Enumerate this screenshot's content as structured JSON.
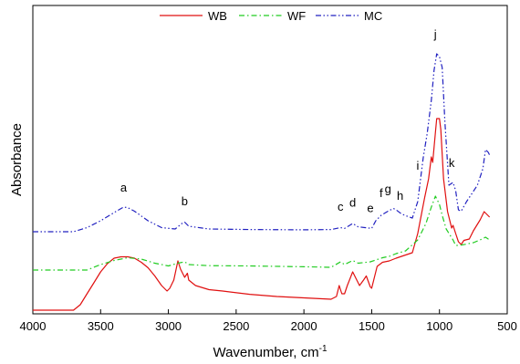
{
  "chart_data": {
    "type": "line",
    "title": "",
    "xlabel": "Wavenumber, cm",
    "xlabel_superscript": "-1",
    "ylabel": "Absorbance",
    "xlim": [
      4000,
      500
    ],
    "x_reversed": true,
    "x_ticks": [
      4000,
      3500,
      3000,
      2500,
      2000,
      1500,
      1000,
      500
    ],
    "y_ticks_shown": false,
    "legend_position": "top",
    "series": [
      {
        "name": "WB",
        "color": "#e01010",
        "dash": "solid",
        "points": [
          [
            4000,
            0.0
          ],
          [
            3800,
            0.0
          ],
          [
            3700,
            0.0
          ],
          [
            3650,
            0.02
          ],
          [
            3600,
            0.06
          ],
          [
            3550,
            0.1
          ],
          [
            3500,
            0.14
          ],
          [
            3450,
            0.17
          ],
          [
            3400,
            0.19
          ],
          [
            3350,
            0.195
          ],
          [
            3300,
            0.195
          ],
          [
            3250,
            0.19
          ],
          [
            3200,
            0.175
          ],
          [
            3150,
            0.155
          ],
          [
            3100,
            0.125
          ],
          [
            3050,
            0.09
          ],
          [
            3010,
            0.07
          ],
          [
            2990,
            0.08
          ],
          [
            2960,
            0.11
          ],
          [
            2930,
            0.18
          ],
          [
            2910,
            0.15
          ],
          [
            2880,
            0.12
          ],
          [
            2860,
            0.135
          ],
          [
            2850,
            0.11
          ],
          [
            2800,
            0.09
          ],
          [
            2700,
            0.075
          ],
          [
            2600,
            0.07
          ],
          [
            2400,
            0.058
          ],
          [
            2200,
            0.05
          ],
          [
            2000,
            0.045
          ],
          [
            1800,
            0.04
          ],
          [
            1760,
            0.05
          ],
          [
            1740,
            0.09
          ],
          [
            1720,
            0.06
          ],
          [
            1700,
            0.06
          ],
          [
            1680,
            0.09
          ],
          [
            1640,
            0.14
          ],
          [
            1620,
            0.12
          ],
          [
            1590,
            0.09
          ],
          [
            1560,
            0.11
          ],
          [
            1540,
            0.125
          ],
          [
            1510,
            0.085
          ],
          [
            1500,
            0.08
          ],
          [
            1460,
            0.16
          ],
          [
            1420,
            0.175
          ],
          [
            1370,
            0.18
          ],
          [
            1320,
            0.19
          ],
          [
            1260,
            0.2
          ],
          [
            1200,
            0.21
          ],
          [
            1160,
            0.28
          ],
          [
            1110,
            0.41
          ],
          [
            1080,
            0.48
          ],
          [
            1060,
            0.56
          ],
          [
            1050,
            0.54
          ],
          [
            1030,
            0.65
          ],
          [
            1020,
            0.7
          ],
          [
            1000,
            0.7
          ],
          [
            990,
            0.66
          ],
          [
            970,
            0.48
          ],
          [
            940,
            0.36
          ],
          [
            910,
            0.3
          ],
          [
            900,
            0.31
          ],
          [
            880,
            0.28
          ],
          [
            860,
            0.25
          ],
          [
            840,
            0.24
          ],
          [
            820,
            0.255
          ],
          [
            780,
            0.26
          ],
          [
            750,
            0.29
          ],
          [
            700,
            0.33
          ],
          [
            670,
            0.36
          ],
          [
            650,
            0.35
          ],
          [
            630,
            0.34
          ]
        ]
      },
      {
        "name": "WF",
        "color": "#22cc22",
        "dash": "dash-dot",
        "points": [
          [
            4000,
            0.0
          ],
          [
            3600,
            0.0
          ],
          [
            3500,
            0.02
          ],
          [
            3400,
            0.035
          ],
          [
            3300,
            0.045
          ],
          [
            3200,
            0.04
          ],
          [
            3100,
            0.025
          ],
          [
            3000,
            0.015
          ],
          [
            2930,
            0.025
          ],
          [
            2880,
            0.03
          ],
          [
            2850,
            0.02
          ],
          [
            2700,
            0.016
          ],
          [
            2400,
            0.015
          ],
          [
            2000,
            0.012
          ],
          [
            1800,
            0.01
          ],
          [
            1730,
            0.03
          ],
          [
            1700,
            0.02
          ],
          [
            1640,
            0.035
          ],
          [
            1600,
            0.025
          ],
          [
            1510,
            0.03
          ],
          [
            1450,
            0.04
          ],
          [
            1420,
            0.045
          ],
          [
            1370,
            0.05
          ],
          [
            1320,
            0.06
          ],
          [
            1250,
            0.07
          ],
          [
            1160,
            0.11
          ],
          [
            1100,
            0.17
          ],
          [
            1060,
            0.23
          ],
          [
            1030,
            0.27
          ],
          [
            1000,
            0.24
          ],
          [
            980,
            0.2
          ],
          [
            950,
            0.15
          ],
          [
            900,
            0.11
          ],
          [
            880,
            0.09
          ],
          [
            850,
            0.09
          ],
          [
            800,
            0.095
          ],
          [
            750,
            0.1
          ],
          [
            700,
            0.11
          ],
          [
            660,
            0.12
          ],
          [
            630,
            0.11
          ]
        ]
      },
      {
        "name": "MC",
        "color": "#2020c0",
        "dash": "dash-dot-dot",
        "points": [
          [
            4000,
            0.0
          ],
          [
            3700,
            0.0
          ],
          [
            3600,
            0.015
          ],
          [
            3500,
            0.04
          ],
          [
            3400,
            0.07
          ],
          [
            3330,
            0.09
          ],
          [
            3300,
            0.088
          ],
          [
            3250,
            0.075
          ],
          [
            3150,
            0.04
          ],
          [
            3050,
            0.015
          ],
          [
            2950,
            0.01
          ],
          [
            2900,
            0.03
          ],
          [
            2880,
            0.035
          ],
          [
            2850,
            0.02
          ],
          [
            2700,
            0.01
          ],
          [
            2400,
            0.008
          ],
          [
            2000,
            0.007
          ],
          [
            1800,
            0.008
          ],
          [
            1730,
            0.015
          ],
          [
            1700,
            0.012
          ],
          [
            1640,
            0.03
          ],
          [
            1600,
            0.018
          ],
          [
            1550,
            0.015
          ],
          [
            1500,
            0.012
          ],
          [
            1470,
            0.04
          ],
          [
            1430,
            0.06
          ],
          [
            1380,
            0.075
          ],
          [
            1340,
            0.085
          ],
          [
            1320,
            0.08
          ],
          [
            1280,
            0.065
          ],
          [
            1230,
            0.055
          ],
          [
            1200,
            0.05
          ],
          [
            1160,
            0.11
          ],
          [
            1120,
            0.27
          ],
          [
            1090,
            0.36
          ],
          [
            1060,
            0.48
          ],
          [
            1040,
            0.59
          ],
          [
            1020,
            0.65
          ],
          [
            1000,
            0.64
          ],
          [
            980,
            0.6
          ],
          [
            960,
            0.4
          ],
          [
            930,
            0.17
          ],
          [
            900,
            0.18
          ],
          [
            880,
            0.15
          ],
          [
            860,
            0.08
          ],
          [
            840,
            0.075
          ],
          [
            800,
            0.11
          ],
          [
            760,
            0.14
          ],
          [
            720,
            0.17
          ],
          [
            680,
            0.23
          ],
          [
            660,
            0.3
          ],
          [
            640,
            0.29
          ],
          [
            630,
            0.28
          ]
        ]
      }
    ],
    "annotations": [
      {
        "text": "a",
        "x": 3330,
        "y_anchor_series": "MC",
        "y": 0.12
      },
      {
        "text": "b",
        "x": 2880,
        "y_anchor_series": "MC",
        "y": 0.07
      },
      {
        "text": "c",
        "x": 1730,
        "y_anchor_series": "MC",
        "y": 0.05
      },
      {
        "text": "d",
        "x": 1640,
        "y_anchor_series": "MC",
        "y": 0.065
      },
      {
        "text": "e",
        "x": 1510,
        "y_anchor_series": "MC",
        "y": 0.045
      },
      {
        "text": "f",
        "x": 1430,
        "y_anchor_series": "MC",
        "y": 0.1
      },
      {
        "text": "g",
        "x": 1380,
        "y_anchor_series": "MC",
        "y": 0.115
      },
      {
        "text": "h",
        "x": 1290,
        "y_anchor_series": "MC",
        "y": 0.09
      },
      {
        "text": "i",
        "x": 1160,
        "y_anchor_series": "MC",
        "y": 0.2
      },
      {
        "text": "j",
        "x": 1030,
        "y_anchor_series": "MC",
        "y": 0.68
      },
      {
        "text": "k",
        "x": 910,
        "y_anchor_series": "MC",
        "y": 0.21
      }
    ]
  }
}
